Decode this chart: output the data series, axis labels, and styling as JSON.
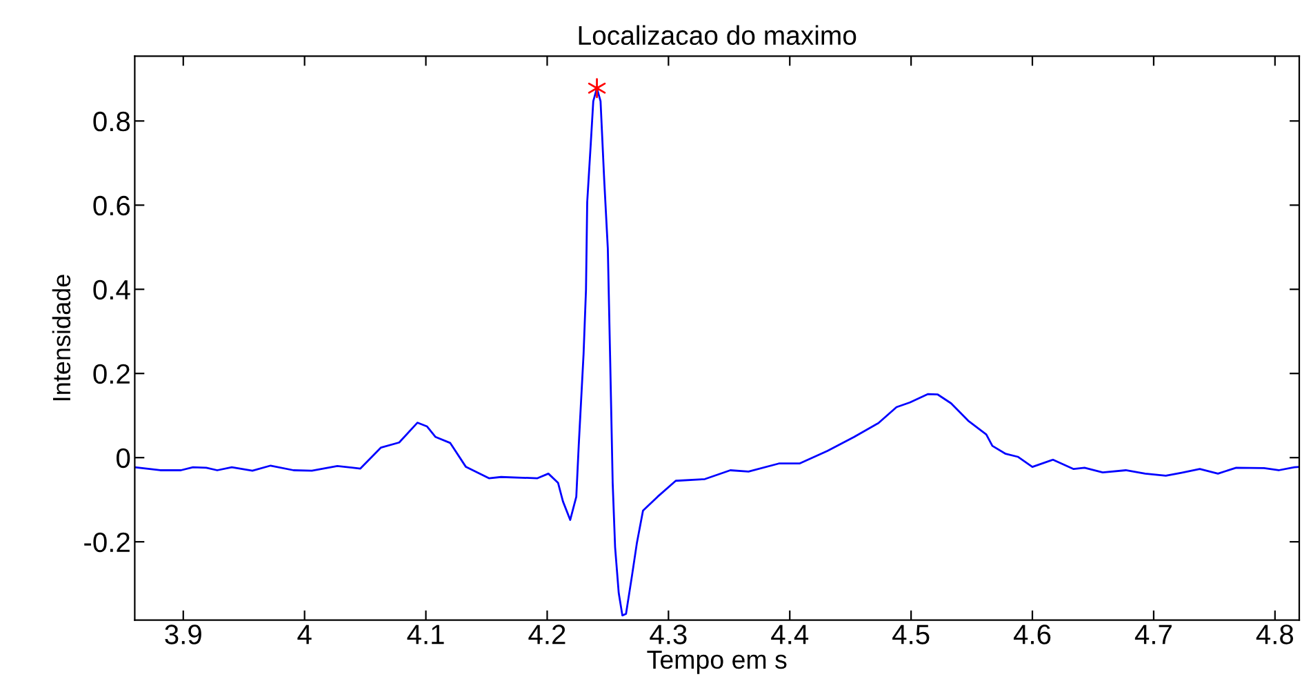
{
  "chart_data": {
    "type": "line",
    "title": "Localizacao do maximo",
    "xlabel": "Tempo em s",
    "ylabel": "Intensidade",
    "xlim": [
      3.86,
      4.82
    ],
    "ylim": [
      -0.386,
      0.954
    ],
    "xticks": [
      3.9,
      4,
      4.1,
      4.2,
      4.3,
      4.4,
      4.5,
      4.6,
      4.7,
      4.8
    ],
    "yticks": [
      -0.2,
      0,
      0.2,
      0.4,
      0.6,
      0.8
    ],
    "grid": false,
    "legend": false,
    "series": [
      {
        "color": "#0000ff",
        "marker": "none",
        "line_style": "solid",
        "x": [
          3.86,
          3.881,
          3.898,
          3.908,
          3.919,
          3.928,
          3.94,
          3.957,
          3.972,
          3.991,
          4.006,
          4.027,
          4.046,
          4.063,
          4.078,
          4.093,
          4.101,
          4.108,
          4.12,
          4.133,
          4.152,
          4.162,
          4.192,
          4.201,
          4.209,
          4.213,
          4.219,
          4.224,
          4.226,
          4.23,
          4.232,
          4.233,
          4.236,
          4.238,
          4.241,
          4.244,
          4.247,
          4.25,
          4.252,
          4.254,
          4.256,
          4.259,
          4.262,
          4.265,
          4.27,
          4.274,
          4.279,
          4.291,
          4.306,
          4.33,
          4.351,
          4.366,
          4.391,
          4.408,
          4.431,
          4.453,
          4.473,
          4.488,
          4.499,
          4.514,
          4.522,
          4.533,
          4.547,
          4.562,
          4.567,
          4.578,
          4.588,
          4.6,
          4.617,
          4.634,
          4.643,
          4.658,
          4.677,
          4.693,
          4.71,
          4.723,
          4.738,
          4.753,
          4.768,
          4.791,
          4.803,
          4.816,
          4.82
        ],
        "values": [
          -0.023,
          -0.03,
          -0.03,
          -0.023,
          -0.024,
          -0.03,
          -0.023,
          -0.031,
          -0.019,
          -0.03,
          -0.031,
          -0.02,
          -0.026,
          0.024,
          0.036,
          0.083,
          0.074,
          0.049,
          0.035,
          -0.022,
          -0.049,
          -0.046,
          -0.049,
          -0.038,
          -0.06,
          -0.104,
          -0.148,
          -0.093,
          0.028,
          0.246,
          0.399,
          0.607,
          0.749,
          0.847,
          0.878,
          0.847,
          0.661,
          0.497,
          0.224,
          -0.06,
          -0.213,
          -0.322,
          -0.375,
          -0.371,
          -0.279,
          -0.202,
          -0.126,
          -0.093,
          -0.055,
          -0.051,
          -0.03,
          -0.033,
          -0.014,
          -0.014,
          0.016,
          0.049,
          0.082,
          0.12,
          0.131,
          0.151,
          0.15,
          0.129,
          0.088,
          0.055,
          0.028,
          0.009,
          0.002,
          -0.022,
          -0.005,
          -0.027,
          -0.024,
          -0.035,
          -0.03,
          -0.038,
          -0.043,
          -0.036,
          -0.027,
          -0.038,
          -0.024,
          -0.025,
          -0.03,
          -0.023,
          -0.022
        ]
      },
      {
        "type": "scatter",
        "color": "#ff0000",
        "marker": "cross",
        "x": [
          4.241
        ],
        "values": [
          0.878
        ]
      }
    ]
  }
}
